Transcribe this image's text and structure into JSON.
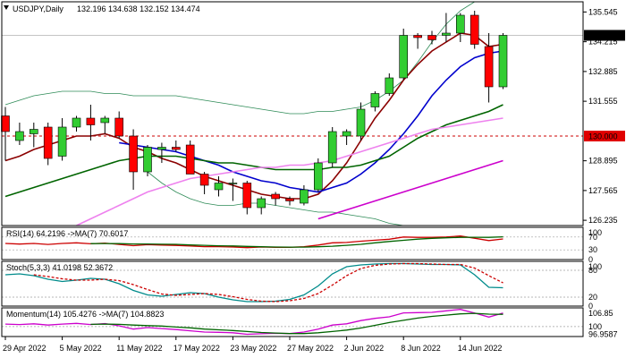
{
  "chart_data": [
    {
      "type": "candlestick",
      "title": "USDJPY,Daily",
      "ohlc_readout": "132.196 134.638 132.152 134.474",
      "ylim": [
        126.0,
        136.0
      ],
      "y_ticks": [
        "135.545",
        "134.215",
        "132.885",
        "131.555",
        "128.895",
        "127.565",
        "126.235"
      ],
      "last_price_label": "134.474",
      "level_label": "130.000",
      "level_value": 130.0,
      "x_labels": [
        "29 Apr 2022",
        "5 May 2022",
        "11 May 2022",
        "17 May 2022",
        "23 May 2022",
        "27 May 2022",
        "2 Jun 2022",
        "8 Jun 2022",
        "14 Jun 2022"
      ],
      "x_label_index": [
        0,
        4,
        8,
        12,
        16,
        20,
        24,
        28,
        32
      ],
      "candles": [
        {
          "o": 130.9,
          "h": 131.3,
          "l": 128.9,
          "c": 130.2
        },
        {
          "o": 129.8,
          "h": 130.6,
          "l": 129.6,
          "c": 130.2
        },
        {
          "o": 130.1,
          "h": 130.6,
          "l": 129.5,
          "c": 130.3
        },
        {
          "o": 130.4,
          "h": 130.6,
          "l": 128.7,
          "c": 129.0
        },
        {
          "o": 129.1,
          "h": 130.8,
          "l": 128.9,
          "c": 130.4
        },
        {
          "o": 130.4,
          "h": 130.9,
          "l": 130.2,
          "c": 130.8
        },
        {
          "o": 130.8,
          "h": 131.4,
          "l": 129.8,
          "c": 130.5
        },
        {
          "o": 130.6,
          "h": 130.9,
          "l": 130.1,
          "c": 130.8
        },
        {
          "o": 130.8,
          "h": 131.1,
          "l": 129.9,
          "c": 130.0
        },
        {
          "o": 130.0,
          "h": 130.3,
          "l": 127.6,
          "c": 128.4
        },
        {
          "o": 128.4,
          "h": 129.6,
          "l": 128.2,
          "c": 129.5
        },
        {
          "o": 129.4,
          "h": 129.7,
          "l": 128.8,
          "c": 129.5
        },
        {
          "o": 129.5,
          "h": 129.8,
          "l": 129.3,
          "c": 129.4
        },
        {
          "o": 129.6,
          "h": 129.8,
          "l": 128.4,
          "c": 128.3
        },
        {
          "o": 128.3,
          "h": 128.4,
          "l": 127.4,
          "c": 127.8
        },
        {
          "o": 127.6,
          "h": 128.2,
          "l": 127.3,
          "c": 127.9
        },
        {
          "o": 127.9,
          "h": 128.1,
          "l": 127.1,
          "c": 127.9
        },
        {
          "o": 127.9,
          "h": 128.0,
          "l": 126.5,
          "c": 126.8
        },
        {
          "o": 126.8,
          "h": 127.3,
          "l": 126.5,
          "c": 127.2
        },
        {
          "o": 127.4,
          "h": 127.5,
          "l": 126.9,
          "c": 127.2
        },
        {
          "o": 127.2,
          "h": 127.3,
          "l": 126.9,
          "c": 127.1
        },
        {
          "o": 127.0,
          "h": 127.8,
          "l": 126.9,
          "c": 127.6
        },
        {
          "o": 127.6,
          "h": 129.0,
          "l": 127.5,
          "c": 128.8
        },
        {
          "o": 128.8,
          "h": 130.4,
          "l": 128.6,
          "c": 130.2
        },
        {
          "o": 130.0,
          "h": 130.3,
          "l": 129.6,
          "c": 130.2
        },
        {
          "o": 130.0,
          "h": 131.5,
          "l": 129.8,
          "c": 131.2
        },
        {
          "o": 131.3,
          "h": 132.0,
          "l": 131.1,
          "c": 131.9
        },
        {
          "o": 131.9,
          "h": 132.8,
          "l": 131.8,
          "c": 132.6
        },
        {
          "o": 132.6,
          "h": 134.8,
          "l": 132.5,
          "c": 134.5
        },
        {
          "o": 134.5,
          "h": 134.6,
          "l": 133.9,
          "c": 134.4
        },
        {
          "o": 134.5,
          "h": 134.7,
          "l": 134.1,
          "c": 134.3
        },
        {
          "o": 134.5,
          "h": 135.5,
          "l": 134.2,
          "c": 134.6
        },
        {
          "o": 134.6,
          "h": 135.5,
          "l": 134.2,
          "c": 135.4
        },
        {
          "o": 135.4,
          "h": 135.6,
          "l": 133.9,
          "c": 134.1
        },
        {
          "o": 134.0,
          "h": 134.6,
          "l": 131.5,
          "c": 132.2
        },
        {
          "o": 132.2,
          "h": 134.6,
          "l": 132.1,
          "c": 134.5
        }
      ],
      "series": [
        {
          "color": "#8b0000",
          "values": [
            128.9,
            129.1,
            129.4,
            129.6,
            129.8,
            130.0,
            130.0,
            130.1,
            129.9,
            129.5,
            129.3,
            129.0,
            128.8,
            128.5,
            128.2,
            128.0,
            127.8,
            127.6,
            127.4,
            127.3,
            127.2,
            127.2,
            127.4,
            128.0,
            128.8,
            129.8,
            130.8,
            131.6,
            132.5,
            133.2,
            133.8,
            134.2,
            134.6,
            134.5,
            134.0,
            134.1
          ]
        },
        {
          "color": "#0000cd",
          "values": [
            null,
            null,
            null,
            null,
            null,
            null,
            null,
            null,
            129.7,
            129.6,
            129.5,
            129.4,
            129.3,
            129.1,
            128.9,
            128.7,
            128.4,
            128.2,
            128.0,
            127.9,
            127.7,
            127.6,
            127.5,
            127.7,
            127.9,
            128.3,
            128.8,
            129.4,
            130.1,
            130.9,
            131.8,
            132.5,
            133.1,
            133.5,
            133.7,
            133.8
          ]
        },
        {
          "color": "#006400",
          "values": [
            127.3,
            127.5,
            127.7,
            127.9,
            128.1,
            128.3,
            128.5,
            128.7,
            128.9,
            129.0,
            129.1,
            129.1,
            129.1,
            129.0,
            128.9,
            128.8,
            128.8,
            128.7,
            128.6,
            128.5,
            128.5,
            128.5,
            128.5,
            128.6,
            128.6,
            128.7,
            128.9,
            129.1,
            129.5,
            129.9,
            130.2,
            130.5,
            130.7,
            130.9,
            131.1,
            131.4
          ]
        },
        {
          "color": "#ee82ee",
          "values": [
            null,
            null,
            null,
            null,
            null,
            126.0,
            126.3,
            126.6,
            126.9,
            127.2,
            127.5,
            127.7,
            127.9,
            128.1,
            128.2,
            128.3,
            128.4,
            128.5,
            128.6,
            128.6,
            128.7,
            128.7,
            128.8,
            128.9,
            129.1,
            129.3,
            129.5,
            129.7,
            129.9,
            130.1,
            130.3,
            130.4,
            130.5,
            130.6,
            130.7,
            130.8
          ]
        },
        {
          "color": "#cc00cc",
          "values": [
            null,
            null,
            null,
            null,
            null,
            null,
            null,
            null,
            null,
            null,
            null,
            null,
            null,
            null,
            null,
            null,
            null,
            null,
            null,
            null,
            null,
            null,
            126.3,
            126.5,
            126.7,
            126.9,
            127.1,
            127.3,
            127.5,
            127.7,
            127.9,
            128.1,
            128.3,
            128.5,
            128.7,
            128.9
          ]
        }
      ],
      "band_upper": [
        131.4,
        131.6,
        131.8,
        131.9,
        132.0,
        132.0,
        132.0,
        131.9,
        131.9,
        131.8,
        131.8,
        131.8,
        131.8,
        131.7,
        131.6,
        131.5,
        131.4,
        131.3,
        131.2,
        131.1,
        131.0,
        131.0,
        131.1,
        131.1,
        131.2,
        131.3,
        131.6,
        132.0,
        132.5,
        133.3,
        134.2,
        135.0,
        135.6,
        136.0,
        136.0,
        136.0
      ],
      "band_lower": [
        null,
        null,
        null,
        null,
        null,
        null,
        null,
        null,
        null,
        null,
        128.4,
        127.9,
        127.5,
        127.2,
        127.0,
        126.9,
        126.9,
        127.0,
        127.0,
        126.9,
        126.8,
        126.7,
        126.6,
        126.6,
        126.5,
        126.4,
        126.3,
        126.1,
        126.0,
        126.0,
        126.0,
        126.0,
        126.0,
        126.0,
        126.0,
        126.0
      ]
    },
    {
      "type": "line",
      "title": "RSI(14) 64.2196 ->MA(7) 70.6017",
      "ylim": [
        0,
        100
      ],
      "ref_lines": [
        30,
        70
      ],
      "y_ticks": [
        "100",
        "70",
        "30",
        "0"
      ],
      "y_tick_values": [
        100,
        70,
        30,
        0
      ],
      "series": [
        {
          "color": "#cc0000",
          "values": [
            50,
            48,
            50,
            47,
            50,
            52,
            49,
            51,
            47,
            43,
            46,
            45,
            44,
            42,
            40,
            40,
            39,
            37,
            39,
            38,
            38,
            40,
            45,
            52,
            53,
            57,
            60,
            63,
            70,
            69,
            69,
            70,
            73,
            66,
            59,
            64
          ]
        },
        {
          "color": "#006400",
          "values": [
            null,
            null,
            null,
            null,
            null,
            null,
            49.4,
            49.6,
            49.4,
            48.4,
            48.3,
            47.6,
            47.1,
            45.4,
            44.1,
            42.9,
            42.3,
            40.9,
            39.7,
            38.9,
            38.6,
            38.7,
            39.6,
            41.4,
            44.1,
            47.1,
            52.0,
            56.1,
            59.7,
            63.4,
            65.9,
            67.4,
            68.9,
            69.1,
            68.9,
            70.6
          ]
        }
      ]
    },
    {
      "type": "line",
      "title": "Stoch(5,3,3) 41.0198 52.3672",
      "ylim": [
        0,
        100
      ],
      "ref_lines": [
        20,
        80
      ],
      "y_ticks": [
        "100",
        "80",
        "20",
        "0"
      ],
      "y_tick_values": [
        100,
        80,
        20,
        0
      ],
      "series": [
        {
          "color": "#008b8b",
          "values": [
            70,
            72,
            68,
            60,
            55,
            58,
            62,
            60,
            50,
            35,
            25,
            22,
            26,
            30,
            28,
            20,
            14,
            10,
            10,
            11,
            15,
            25,
            45,
            72,
            88,
            92,
            94,
            95,
            95,
            94,
            93,
            93,
            92,
            70,
            42,
            41
          ]
        },
        {
          "color": "#cc0000",
          "dashed": true,
          "values": [
            null,
            null,
            70,
            66,
            61,
            58,
            58,
            60,
            57,
            48,
            37,
            27,
            24,
            26,
            28,
            26,
            21,
            15,
            11,
            10,
            12,
            17,
            28,
            47,
            68,
            84,
            91,
            94,
            95,
            95,
            94,
            93,
            93,
            85,
            68,
            52
          ]
        }
      ]
    },
    {
      "type": "line",
      "title": "Momentum(14) 105.4276 ->MA(7) 104.8823",
      "ylim": [
        96.0,
        107.5
      ],
      "ref_lines": [
        100
      ],
      "y_ticks": [
        "106.85",
        "100",
        "96.9587"
      ],
      "y_tick_values": [
        106.85,
        100,
        96.9587
      ],
      "series": [
        {
          "color": "#cc00cc",
          "values": [
            101.0,
            100.8,
            101.1,
            100.6,
            101.0,
            101.3,
            100.8,
            101.2,
            100.3,
            99.0,
            99.6,
            99.2,
            98.8,
            98.3,
            97.8,
            97.7,
            97.5,
            96.9,
            97.1,
            97.3,
            97.2,
            97.8,
            99.0,
            100.6,
            101.1,
            102.4,
            103.3,
            103.9,
            105.5,
            105.6,
            105.7,
            106.3,
            106.9,
            105.4,
            103.8,
            105.4
          ]
        },
        {
          "color": "#006400",
          "values": [
            null,
            null,
            null,
            null,
            null,
            null,
            100.9,
            101.0,
            100.9,
            100.6,
            100.4,
            100.2,
            99.8,
            99.5,
            99.0,
            98.7,
            98.4,
            98.0,
            97.6,
            97.4,
            97.2,
            97.2,
            97.5,
            98.0,
            98.6,
            99.4,
            100.5,
            101.6,
            102.5,
            103.4,
            104.1,
            104.6,
            105.1,
            105.3,
            105.0,
            104.9
          ]
        }
      ]
    }
  ]
}
